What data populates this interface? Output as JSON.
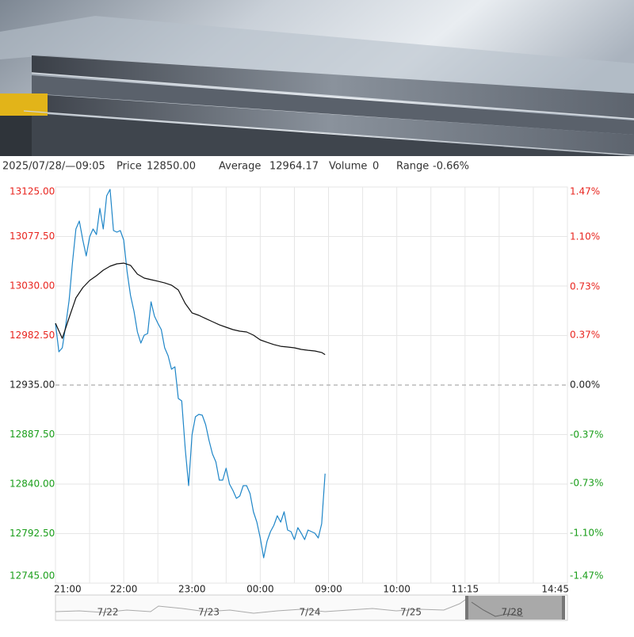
{
  "info": {
    "datetime": "2025/07/28/—09:05",
    "price_label": "Price",
    "price": "12850.00",
    "average_label": "Average",
    "average": "12964.17",
    "volume_label": "Volume",
    "volume": "0",
    "range_label": "Range",
    "range": "-0.66%"
  },
  "chart_data": {
    "type": "line",
    "xlim": [
      0,
      450
    ],
    "xticks": [
      {
        "value": 0,
        "label": "21:00"
      },
      {
        "value": 60,
        "label": "22:00"
      },
      {
        "value": 120,
        "label": "23:00"
      },
      {
        "value": 180,
        "label": "00:00"
      },
      {
        "value": 240,
        "label": "09:00"
      },
      {
        "value": 300,
        "label": "10:00"
      },
      {
        "value": 360,
        "label": "11:15"
      },
      {
        "value": 450,
        "label": "14:45"
      }
    ],
    "ylim": [
      12745,
      13125
    ],
    "yticks": [
      {
        "value": 13125,
        "label": "13125.00"
      },
      {
        "value": 13077.5,
        "label": "13077.50"
      },
      {
        "value": 13030,
        "label": "13030.00"
      },
      {
        "value": 12982.5,
        "label": "12982.50"
      },
      {
        "value": 12935,
        "label": "12935.00"
      },
      {
        "value": 12887.5,
        "label": "12887.50"
      },
      {
        "value": 12840,
        "label": "12840.00"
      },
      {
        "value": 12792.5,
        "label": "12792.50"
      },
      {
        "value": 12745,
        "label": "12745.00"
      }
    ],
    "y2lim": [
      -1.47,
      1.47
    ],
    "y2ticks": [
      {
        "value": 1.47,
        "label": "1.47%"
      },
      {
        "value": 1.1,
        "label": "1.10%"
      },
      {
        "value": 0.73,
        "label": "0.73%"
      },
      {
        "value": 0.37,
        "label": "0.37%"
      },
      {
        "value": 0,
        "label": "0.00%"
      },
      {
        "value": -0.37,
        "label": "-0.37%"
      },
      {
        "value": -0.73,
        "label": "-0.73%"
      },
      {
        "value": -1.1,
        "label": "-1.10%"
      },
      {
        "value": -1.47,
        "label": "-1.47%"
      }
    ],
    "baseline": 12935,
    "grid": true,
    "up_color": "#e8251f",
    "down_color": "#1a9e1a",
    "flat_color": "#222222",
    "series": [
      {
        "color": "#1f86c8",
        "x": [
          0,
          3,
          6,
          9,
          12,
          15,
          18,
          21,
          24,
          27,
          30,
          33,
          36,
          39,
          42,
          45,
          48,
          51,
          54,
          57,
          60,
          63,
          66,
          69,
          72,
          75,
          78,
          81,
          84,
          87,
          90,
          93,
          96,
          99,
          102,
          105,
          108,
          111,
          114,
          117,
          120,
          123,
          126,
          129,
          132,
          135,
          138,
          141,
          144,
          147,
          150,
          153,
          156,
          159,
          162,
          165,
          168,
          171,
          174,
          177,
          180,
          183,
          186,
          189,
          192,
          195,
          198,
          201,
          204,
          207,
          210,
          213,
          216,
          219,
          222,
          225,
          228,
          231,
          234,
          237
        ],
        "values": [
          12994.3,
          12966.9,
          12970.7,
          12992.0,
          13016.3,
          13052.8,
          13084.7,
          13092.3,
          13074.1,
          13058.9,
          13077.1,
          13084.7,
          13079.4,
          13104.5,
          13084.7,
          13116.6,
          13122.7,
          13083.2,
          13081.7,
          13083.2,
          13074.1,
          13043.7,
          13020.9,
          13005.7,
          12985.9,
          12975.3,
          12982.9,
          12984.4,
          13014.8,
          13001.1,
          12994.3,
          12988.2,
          12970.7,
          12963.1,
          12950.2,
          12952.5,
          12922.1,
          12919.8,
          12874.2,
          12838.5,
          12887.1,
          12904.6,
          12906.9,
          12906.1,
          12897.0,
          12881.8,
          12868.9,
          12861.3,
          12843.8,
          12843.8,
          12855.2,
          12840.0,
          12833.9,
          12826.3,
          12828.6,
          12838.5,
          12838.5,
          12830.9,
          12813.4,
          12803.5,
          12788.3,
          12769.3,
          12785.3,
          12794.4,
          12800.5,
          12809.6,
          12803.5,
          12813.4,
          12795.9,
          12794.4,
          12786.8,
          12798.2,
          12792.9,
          12786.8,
          12795.9,
          12794.4,
          12792.9,
          12788.3,
          12802.0,
          12850.0
        ]
      },
      {
        "color": "#111111",
        "x": [
          0,
          6,
          12,
          18,
          24,
          30,
          36,
          42,
          48,
          54,
          60,
          66,
          72,
          78,
          84,
          90,
          96,
          102,
          108,
          114,
          120,
          126,
          132,
          138,
          144,
          150,
          156,
          162,
          168,
          174,
          180,
          186,
          192,
          198,
          204,
          210,
          216,
          222,
          228,
          234,
          237
        ],
        "values": [
          12994.3,
          12979.8,
          12999.6,
          13018.6,
          13028.5,
          13035.3,
          13039.9,
          13045.2,
          13049.0,
          13051.3,
          13052.0,
          13049.8,
          13041.4,
          13037.6,
          13036.1,
          13034.6,
          13033.0,
          13030.8,
          13026.2,
          13013.3,
          13004.2,
          13001.9,
          12998.8,
          12995.8,
          12992.8,
          12990.5,
          12988.2,
          12986.7,
          12985.9,
          12982.9,
          12978.3,
          12976.0,
          12973.8,
          12972.2,
          12971.5,
          12970.7,
          12969.2,
          12968.4,
          12967.7,
          12966.2,
          12964.17
        ]
      }
    ]
  },
  "navigator": {
    "labels": [
      "7/22",
      "7/23",
      "7/24",
      "7/25",
      "7/28"
    ]
  }
}
